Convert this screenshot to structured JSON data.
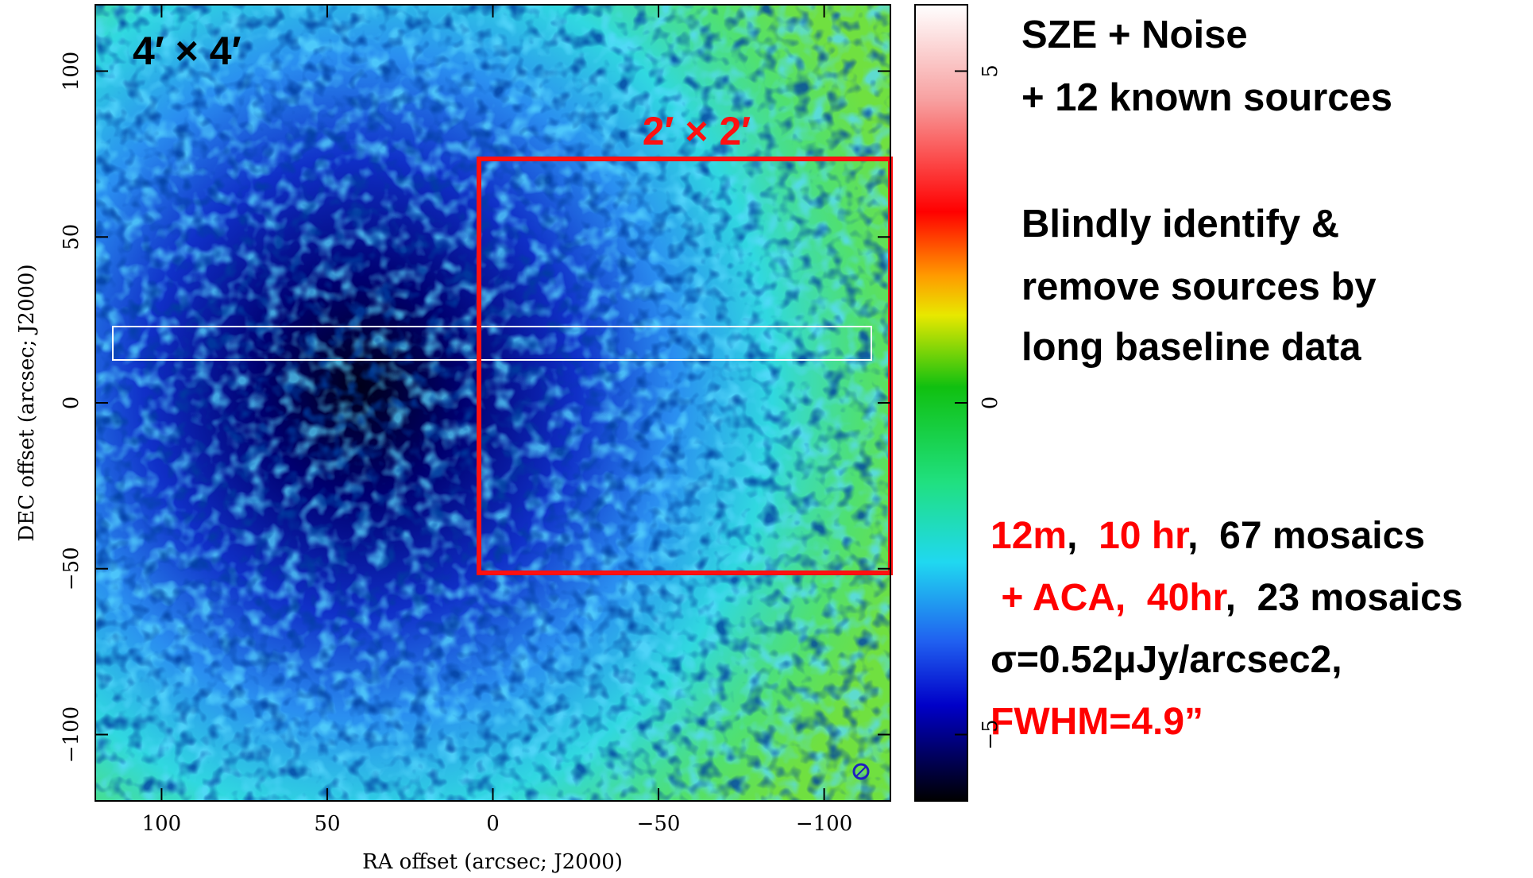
{
  "chart_data": {
    "type": "map",
    "xlabel": "RA offset (arcsec; J2000)",
    "ylabel": "DEC offset (arcsec; J2000)",
    "xlim": [
      120,
      -120
    ],
    "xticks": [
      100,
      50,
      0,
      {
        "value": -50,
        "label": "−50"
      },
      {
        "value": -100,
        "label": "−100"
      }
    ],
    "ylim": [
      -120,
      120
    ],
    "yticks": [
      {
        "value": -100,
        "label": "−100"
      },
      {
        "value": -50,
        "label": "−50"
      },
      0,
      50,
      100
    ],
    "colorbar": {
      "lim": [
        -6,
        6
      ],
      "ticks": [
        {
          "value": -5,
          "label": "−5"
        },
        0,
        5
      ]
    },
    "field_label": "4′ × 4′",
    "box_label": "2′ × 2′",
    "notes": [
      "SZE + Noise",
      "+ 12 known sources",
      "Blindly identify &",
      "remove sources by",
      "long baseline data"
    ],
    "obs_lines": [
      [
        {
          "text": "12m",
          "color": "#ff0000"
        },
        {
          "text": ",  ",
          "color": "#000000"
        },
        {
          "text": "10 hr",
          "color": "#ff0000"
        },
        {
          "text": ",  67 mosaics",
          "color": "#000000"
        }
      ],
      [
        {
          "text": " + ACA,  40hr",
          "color": "#ff0000"
        },
        {
          "text": ",  23 mosaics",
          "color": "#000000"
        }
      ],
      [
        {
          "text": "σ=0.52μJy/arcsec2,",
          "color": "#000000"
        }
      ],
      [
        {
          "text": "FWHM=4.9”",
          "color": "#ff0000"
        }
      ]
    ]
  }
}
